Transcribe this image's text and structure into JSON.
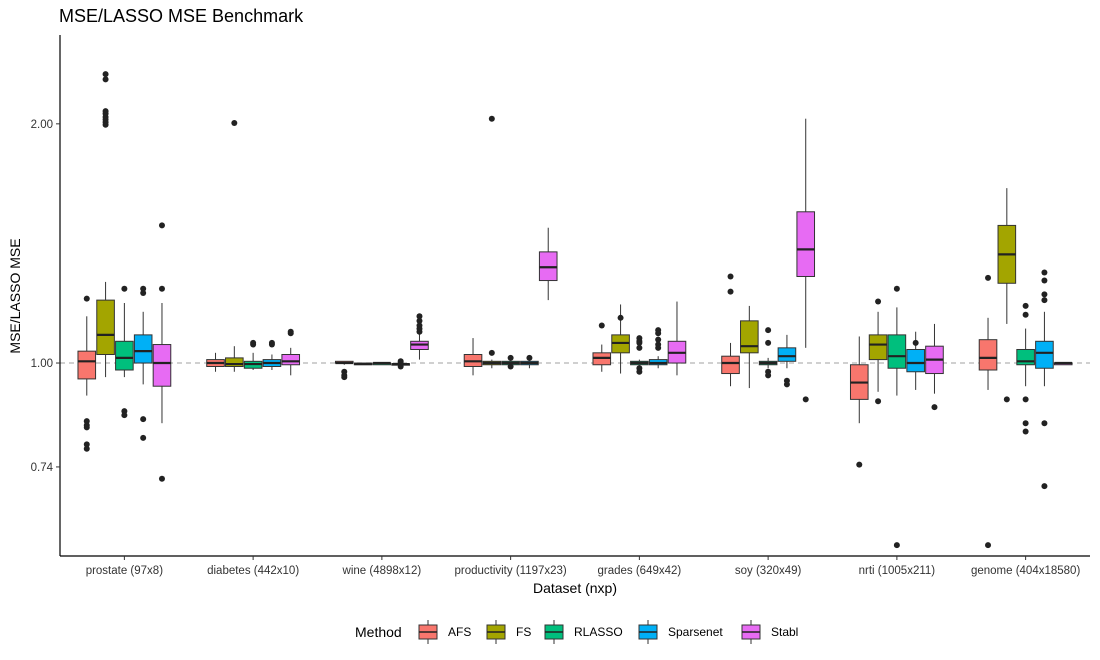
{
  "chart_data": {
    "type": "boxplot",
    "title": "MSE/LASSO MSE Benchmark",
    "xlabel": "Dataset (nxp)",
    "ylabel": "MSE/LASSO MSE",
    "y_scale": "log",
    "ylim": [
      0.58,
      2.55
    ],
    "y_ticks": [
      {
        "value": 0.74,
        "label": "0.74"
      },
      {
        "value": 1.0,
        "label": "1.00"
      },
      {
        "value": 2.0,
        "label": "2.00"
      }
    ],
    "reference_line": {
      "value": 1.0,
      "style": "dashed",
      "color": "#b3b3b3"
    },
    "grid": false,
    "legend": {
      "title": "Method",
      "position": "bottom"
    },
    "categories": [
      "prostate (97x8)",
      "diabetes (442x10)",
      "wine (4898x12)",
      "productivity (1197x23)",
      "grades (649x42)",
      "soy (320x49)",
      "nrti (1005x211)",
      "genome (404x18580)"
    ],
    "series": [
      {
        "name": "AFS",
        "color": "#F8766D",
        "boxes": [
          {
            "q1": 0.955,
            "median": 1.005,
            "q3": 1.035,
            "lower": 0.91,
            "upper": 1.145,
            "outliers": [
              0.845,
              0.835,
              0.83,
              0.79,
              0.78,
              1.205
            ]
          },
          {
            "q1": 0.99,
            "median": 1.0,
            "q3": 1.01,
            "lower": 0.975,
            "upper": 1.03,
            "outliers": []
          },
          {
            "q1": 1.0,
            "median": 1.0,
            "q3": 1.005,
            "lower": 0.995,
            "upper": 1.005,
            "outliers": [
              0.975,
              0.965,
              0.96
            ]
          },
          {
            "q1": 0.99,
            "median": 1.005,
            "q3": 1.025,
            "lower": 0.965,
            "upper": 1.075,
            "outliers": []
          },
          {
            "q1": 0.995,
            "median": 1.015,
            "q3": 1.03,
            "lower": 0.975,
            "upper": 1.055,
            "outliers": [
              1.115
            ]
          },
          {
            "q1": 0.97,
            "median": 1.0,
            "q3": 1.02,
            "lower": 0.935,
            "upper": 1.06,
            "outliers": [
              1.285,
              1.23
            ]
          },
          {
            "q1": 0.9,
            "median": 0.945,
            "q3": 0.995,
            "lower": 0.84,
            "upper": 1.08,
            "outliers": [
              0.745
            ]
          },
          {
            "q1": 0.98,
            "median": 1.015,
            "q3": 1.07,
            "lower": 0.925,
            "upper": 1.14,
            "outliers": [
              1.28,
              0.59
            ]
          }
        ]
      },
      {
        "name": "FS",
        "color": "#A3A500",
        "boxes": [
          {
            "q1": 1.025,
            "median": 1.085,
            "q3": 1.2,
            "lower": 0.96,
            "upper": 1.265,
            "outliers": [
              1.995,
              2.01,
              2.025,
              2.04,
              2.06,
              2.075,
              2.275,
              2.31
            ]
          },
          {
            "q1": 0.99,
            "median": 0.997,
            "q3": 1.015,
            "lower": 0.975,
            "upper": 1.05,
            "outliers": [
              2.005
            ]
          },
          {
            "q1": 0.995,
            "median": 0.997,
            "q3": 1.0,
            "lower": 0.995,
            "upper": 1.0,
            "outliers": []
          },
          {
            "q1": 0.995,
            "median": 1.0,
            "q3": 1.005,
            "lower": 0.985,
            "upper": 1.01,
            "outliers": [
              2.03,
              1.03
            ]
          },
          {
            "q1": 1.03,
            "median": 1.06,
            "q3": 1.085,
            "lower": 0.97,
            "upper": 1.185,
            "outliers": [
              1.14
            ]
          },
          {
            "q1": 1.03,
            "median": 1.05,
            "q3": 1.13,
            "lower": 0.93,
            "upper": 1.18,
            "outliers": []
          },
          {
            "q1": 1.01,
            "median": 1.055,
            "q3": 1.085,
            "lower": 0.92,
            "upper": 1.16,
            "outliers": [
              0.895,
              1.195
            ]
          },
          {
            "q1": 1.26,
            "median": 1.37,
            "q3": 1.49,
            "lower": 1.12,
            "upper": 1.66,
            "outliers": [
              0.9
            ]
          }
        ]
      },
      {
        "name": "RLASSO",
        "color": "#00BF7D",
        "boxes": [
          {
            "q1": 0.98,
            "median": 1.015,
            "q3": 1.065,
            "lower": 0.96,
            "upper": 1.19,
            "outliers": [
              1.24,
              0.87,
              0.86
            ]
          },
          {
            "q1": 0.985,
            "median": 0.997,
            "q3": 1.005,
            "lower": 0.98,
            "upper": 1.03,
            "outliers": [
              1.055,
              1.06
            ]
          },
          {
            "q1": 0.995,
            "median": 1.0,
            "q3": 1.0,
            "lower": 0.995,
            "upper": 1.0,
            "outliers": []
          },
          {
            "q1": 0.995,
            "median": 1.0,
            "q3": 1.005,
            "lower": 0.985,
            "upper": 1.01,
            "outliers": [
              0.99,
              1.015
            ]
          },
          {
            "q1": 0.995,
            "median": 1.0,
            "q3": 1.005,
            "lower": 0.99,
            "upper": 1.01,
            "outliers": [
              0.985,
              0.975,
              1.045,
              1.06,
              1.065,
              1.075
            ]
          },
          {
            "q1": 0.995,
            "median": 1.0,
            "q3": 1.005,
            "lower": 0.985,
            "upper": 1.015,
            "outliers": [
              0.975,
              0.965,
              1.06,
              1.1
            ]
          },
          {
            "q1": 0.985,
            "median": 1.02,
            "q3": 1.085,
            "lower": 0.91,
            "upper": 1.175,
            "outliers": [
              1.24,
              0.59
            ]
          },
          {
            "q1": 0.995,
            "median": 1.005,
            "q3": 1.04,
            "lower": 0.935,
            "upper": 1.105,
            "outliers": [
              1.18,
              1.15,
              0.9,
              0.84,
              0.82
            ]
          }
        ]
      },
      {
        "name": "Sparsenet",
        "color": "#00B0F6",
        "boxes": [
          {
            "q1": 1.0,
            "median": 1.035,
            "q3": 1.085,
            "lower": 0.94,
            "upper": 1.16,
            "outliers": [
              1.24,
              1.225,
              0.85,
              0.805
            ]
          },
          {
            "q1": 0.99,
            "median": 1.0,
            "q3": 1.01,
            "lower": 0.98,
            "upper": 1.025,
            "outliers": [
              1.055,
              1.06
            ]
          },
          {
            "q1": 0.996,
            "median": 0.997,
            "q3": 0.998,
            "lower": 0.995,
            "upper": 1.0,
            "outliers": [
              0.99,
              1.0,
              1.005
            ]
          },
          {
            "q1": 0.995,
            "median": 1.0,
            "q3": 1.005,
            "lower": 0.985,
            "upper": 1.01,
            "outliers": [
              1.015
            ]
          },
          {
            "q1": 0.995,
            "median": 1.0,
            "q3": 1.01,
            "lower": 0.985,
            "upper": 1.02,
            "outliers": [
              1.045,
              1.055,
              1.07,
              1.09,
              1.1
            ]
          },
          {
            "q1": 1.005,
            "median": 1.02,
            "q3": 1.045,
            "lower": 0.985,
            "upper": 1.085,
            "outliers": [
              0.94,
              0.95
            ]
          },
          {
            "q1": 0.975,
            "median": 1.0,
            "q3": 1.04,
            "lower": 0.925,
            "upper": 1.095,
            "outliers": [
              1.06
            ]
          },
          {
            "q1": 0.985,
            "median": 1.03,
            "q3": 1.065,
            "lower": 0.935,
            "upper": 1.16,
            "outliers": [
              1.27,
              1.2,
              1.22,
              1.3,
              0.84,
              0.7
            ]
          }
        ]
      },
      {
        "name": "Stabl",
        "color": "#E76BF3",
        "boxes": [
          {
            "q1": 0.935,
            "median": 1.0,
            "q3": 1.055,
            "lower": 0.84,
            "upper": 1.19,
            "outliers": [
              0.715,
              1.24,
              1.49
            ]
          },
          {
            "q1": 0.995,
            "median": 1.005,
            "q3": 1.025,
            "lower": 0.965,
            "upper": 1.045,
            "outliers": [
              1.09,
              1.095
            ]
          },
          {
            "q1": 1.04,
            "median": 1.055,
            "q3": 1.065,
            "lower": 1.01,
            "upper": 1.09,
            "outliers": [
              1.095,
              1.105,
              1.115,
              1.13,
              1.145
            ]
          },
          {
            "q1": 1.27,
            "median": 1.32,
            "q3": 1.38,
            "lower": 1.2,
            "upper": 1.48,
            "outliers": []
          },
          {
            "q1": 1.0,
            "median": 1.03,
            "q3": 1.065,
            "lower": 0.965,
            "upper": 1.195,
            "outliers": []
          },
          {
            "q1": 1.285,
            "median": 1.39,
            "q3": 1.55,
            "lower": 1.045,
            "upper": 2.03,
            "outliers": [
              0.9
            ]
          },
          {
            "q1": 0.97,
            "median": 1.01,
            "q3": 1.05,
            "lower": 0.915,
            "upper": 1.12,
            "outliers": [
              0.88
            ]
          },
          {
            "q1": 0.995,
            "median": 1.0,
            "q3": 1.0,
            "lower": 0.995,
            "upper": 1.0,
            "outliers": []
          }
        ]
      }
    ]
  }
}
